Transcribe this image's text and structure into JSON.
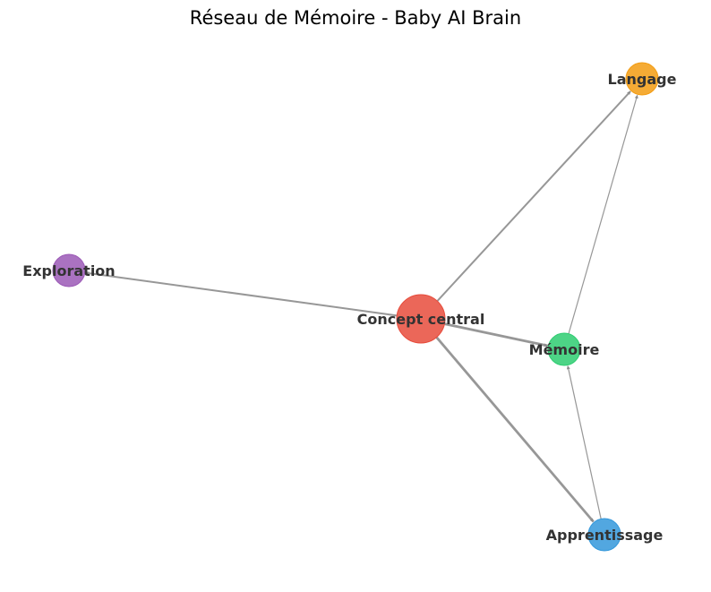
{
  "title": "Réseau de Mémoire - Baby AI Brain",
  "graph": {
    "nodes": [
      {
        "id": "central",
        "label": "Concept central",
        "color": "#e74c3c"
      },
      {
        "id": "memoire",
        "label": "Mémoire",
        "color": "#2ecc71"
      },
      {
        "id": "langage",
        "label": "Langage",
        "color": "#f39c12"
      },
      {
        "id": "apprentissage",
        "label": "Apprentissage",
        "color": "#3498db"
      },
      {
        "id": "exploration",
        "label": "Exploration",
        "color": "#9b59b6"
      }
    ],
    "edges": [
      {
        "source": "central",
        "target": "exploration",
        "weight": "medium"
      },
      {
        "source": "central",
        "target": "langage",
        "weight": "medium"
      },
      {
        "source": "central",
        "target": "memoire",
        "weight": "heavy"
      },
      {
        "source": "central",
        "target": "apprentissage",
        "weight": "heavy"
      },
      {
        "source": "memoire",
        "target": "langage",
        "weight": "light"
      },
      {
        "source": "apprentissage",
        "target": "memoire",
        "weight": "light"
      }
    ],
    "edge_color": "#8c8c8c",
    "directed": true
  }
}
